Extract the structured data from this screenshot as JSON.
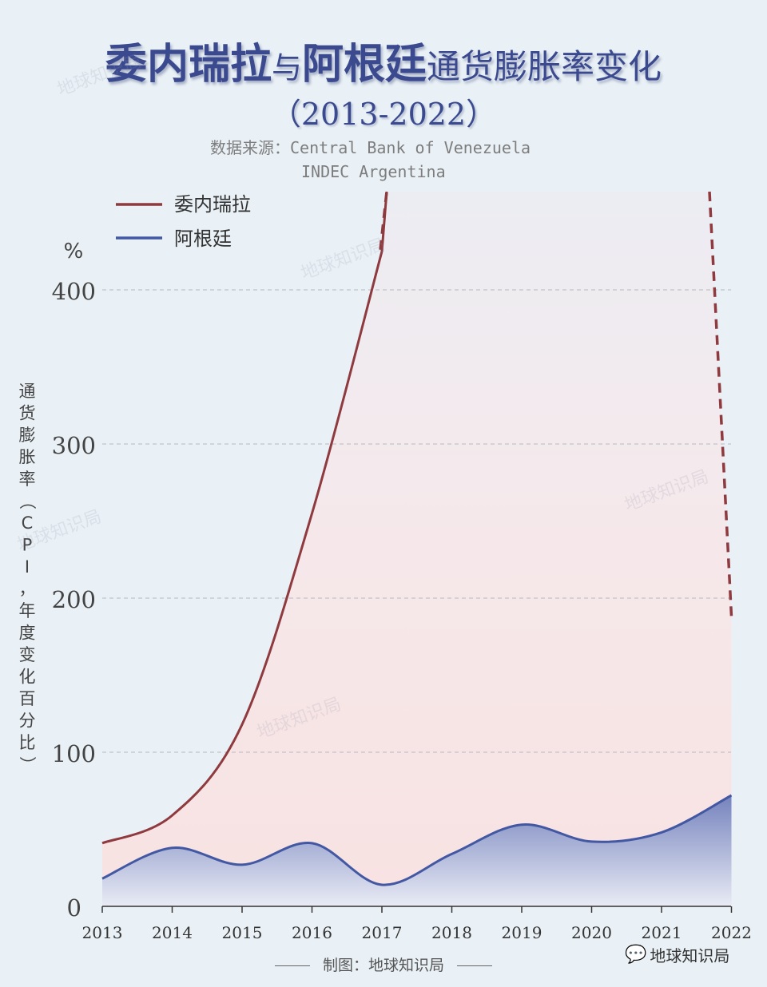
{
  "title": {
    "part1": "委内瑞拉",
    "connector": "与",
    "part2": "阿根廷",
    "part3": "通货膨胀率变化",
    "years": "（2013-2022）"
  },
  "source": {
    "label": "数据来源：",
    "line1": "Central Bank of Venezuela",
    "line2": "INDEC Argentina"
  },
  "credit": "制图：地球知识局",
  "watermark": "地球知识局",
  "colors": {
    "venezuela": "#8e3a3f",
    "argentina": "#4358a3",
    "background": "#e9f1f6"
  },
  "chart_data": {
    "type": "line",
    "ylabel_unit": "%",
    "ylabel": "通货膨胀率（CPI，年度变化百分比）",
    "ylim": [
      0,
      460
    ],
    "yticks": [
      0,
      100,
      200,
      300,
      400
    ],
    "grid": true,
    "legend_position": "top-left",
    "categories": [
      "2013",
      "2014",
      "2015",
      "2016",
      "2017",
      "2018",
      "2019",
      "2020",
      "2021",
      "2022"
    ],
    "series": [
      {
        "name": "委内瑞拉",
        "values": [
          41,
          59,
          118,
          255,
          425,
          460,
          460,
          460,
          460,
          188
        ],
        "note_visible": "off-scale from 2017 to 2022 (dashed)"
      },
      {
        "name": "阿根廷",
        "values": [
          18,
          38,
          27,
          41,
          14,
          34,
          53,
          42,
          48,
          72
        ]
      }
    ]
  }
}
